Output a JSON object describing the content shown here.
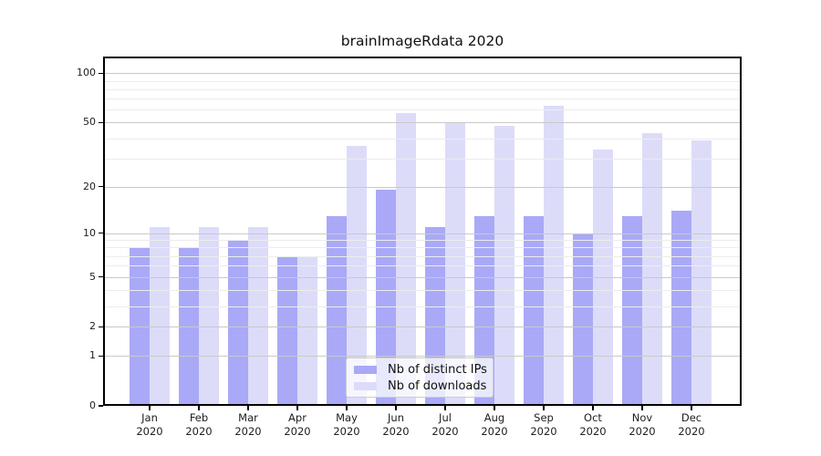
{
  "chart_data": {
    "type": "bar",
    "title": "brainImageRdata 2020",
    "categories": [
      "Jan",
      "Feb",
      "Mar",
      "Apr",
      "May",
      "Jun",
      "Jul",
      "Aug",
      "Sep",
      "Oct",
      "Nov",
      "Dec"
    ],
    "x_year_label": "2020",
    "series": [
      {
        "name": "Nb of distinct IPs",
        "color": "#a9a9f7",
        "values": [
          8,
          8,
          9,
          7,
          13,
          19,
          11,
          13,
          13,
          10,
          13,
          14
        ]
      },
      {
        "name": "Nb of downloads",
        "color": "#dcdcf9",
        "values": [
          11,
          11,
          11,
          7,
          36,
          57,
          50,
          48,
          63,
          34,
          43,
          39
        ]
      }
    ],
    "yscale": "log1p",
    "ylim": [
      0,
      127
    ],
    "yticks": [
      0,
      1,
      2,
      5,
      10,
      20,
      50,
      100
    ],
    "minor_gridlines": [
      3,
      4,
      6,
      7,
      8,
      9,
      30,
      40,
      60,
      70,
      80,
      90
    ],
    "grid": "on",
    "legend_position": "inside-bottom-center"
  },
  "colors": {
    "background": "#ffffff",
    "axis": "#000000",
    "major_grid": "#c9c9c9",
    "minor_grid": "#ececec",
    "text": "#202020"
  }
}
